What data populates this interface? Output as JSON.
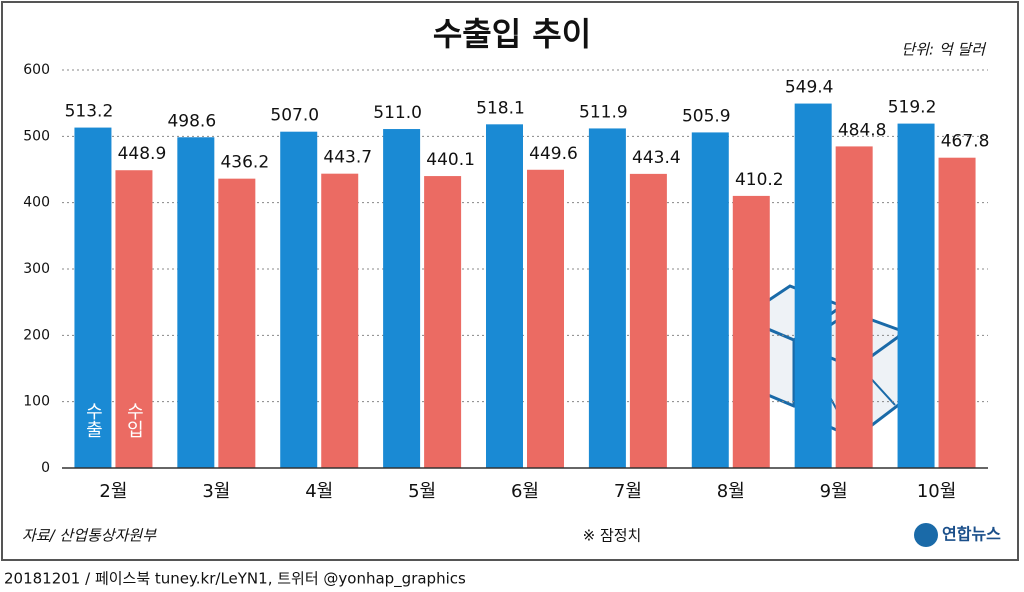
{
  "chart_data": {
    "type": "bar",
    "title": "수출입 추이",
    "unit": "단위: 억 달러",
    "categories": [
      "2월",
      "3월",
      "4월",
      "5월",
      "6월",
      "7월",
      "8월",
      "9월",
      "10월"
    ],
    "series": [
      {
        "name": "수출",
        "color": "#1a8ad4",
        "values": [
          513.2,
          498.6,
          507.0,
          511.0,
          518.1,
          511.9,
          505.9,
          549.4,
          519.2
        ],
        "value_labels": [
          "513.2",
          "498.6",
          "507.0",
          "511.0",
          "518.1",
          "511.9",
          "505.9",
          "549.4",
          "519.2"
        ]
      },
      {
        "name": "수입",
        "color": "#eb6b63",
        "values": [
          448.9,
          436.2,
          443.7,
          440.1,
          449.6,
          443.4,
          410.2,
          484.8,
          467.8
        ],
        "value_labels": [
          "448.9",
          "436.2",
          "443.7",
          "440.1",
          "449.6",
          "443.4",
          "410.2",
          "484.8",
          "467.8"
        ]
      }
    ],
    "ylim": [
      0,
      600
    ],
    "yticks": [
      0,
      100,
      200,
      300,
      400,
      500,
      600
    ],
    "grid": true,
    "source": "자료/ 산업통상자원부",
    "note": "※ 잠정치"
  },
  "logo": "연합뉴스",
  "credit": "20181201 / 페이스북 tuney.kr/LeYN1, 트위터 @yonhap_graphics"
}
